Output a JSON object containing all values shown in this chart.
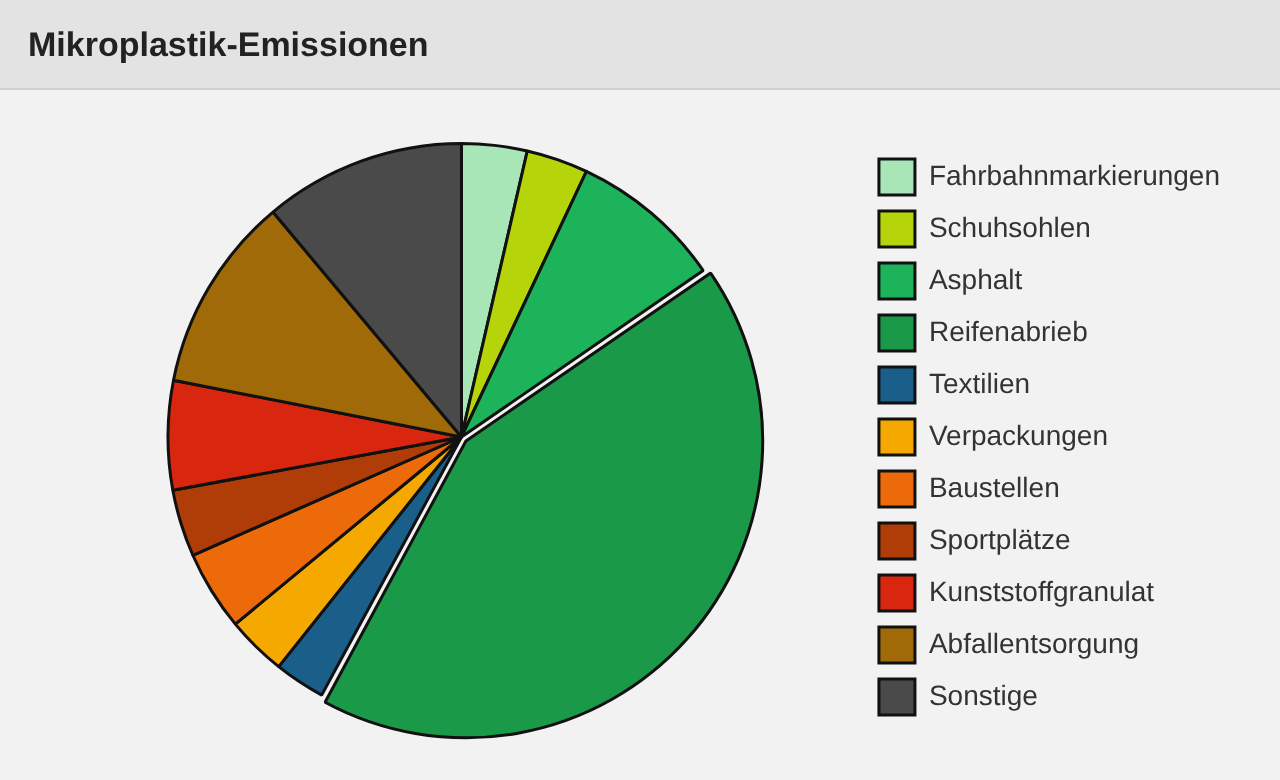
{
  "chart_data": {
    "type": "pie",
    "title": "Mikroplastik-Emissionen",
    "categories": [
      "Fahrbahnmarkierungen",
      "Schuhsohlen",
      "Asphalt",
      "Reifenabrieb",
      "Textilien",
      "Verpackungen",
      "Baustellen",
      "Sportplätze",
      "Kunststoffgranulat",
      "Abfallentsorgung",
      "Sonstige"
    ],
    "values": [
      3.6,
      3.4,
      8.4,
      42.5,
      2.8,
      3.3,
      4.4,
      3.7,
      6,
      10.8,
      11.1
    ],
    "colors": [
      "#a8e6b8",
      "#b5d40a",
      "#1db35a",
      "#1a9a48",
      "#1a5e8a",
      "#f5a800",
      "#ec6a0a",
      "#b03c08",
      "#d9260e",
      "#a06a08",
      "#4a4a4a"
    ],
    "legend": "right"
  }
}
